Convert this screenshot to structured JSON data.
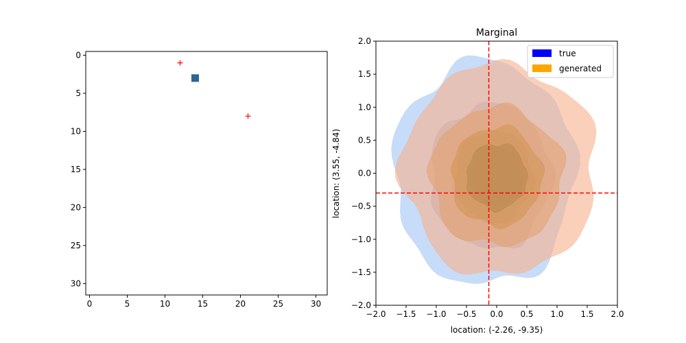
{
  "chart_data": [
    {
      "type": "scatter",
      "title": "",
      "xlabel": "",
      "ylabel": "",
      "xlim": [
        -0.5,
        31.5
      ],
      "ylim": [
        31.5,
        -0.5
      ],
      "y_inverted": true,
      "x_ticks": [
        0,
        5,
        10,
        15,
        20,
        25,
        30
      ],
      "y_ticks": [
        0,
        5,
        10,
        15,
        20,
        25,
        30
      ],
      "grid": false,
      "series": [
        {
          "marker": "square",
          "color": "#2f6591",
          "points": [
            [
              14,
              3
            ]
          ]
        },
        {
          "marker": "plus",
          "color": "#ff0000",
          "points": [
            [
              12,
              1
            ],
            [
              21,
              8
            ]
          ]
        }
      ]
    },
    {
      "type": "area",
      "title": "Marginal",
      "xlabel": "location: (-2.26, -9.35)",
      "ylabel": "location: (3.55, -4.84)",
      "xlim": [
        -2.0,
        2.0
      ],
      "ylim": [
        -2.0,
        2.0
      ],
      "x_ticks": [
        -2.0,
        -1.5,
        -1.0,
        -0.5,
        0.0,
        0.5,
        1.0,
        1.5,
        2.0
      ],
      "y_ticks": [
        -2.0,
        -1.5,
        -1.0,
        -0.5,
        0.0,
        0.5,
        1.0,
        1.5,
        2.0
      ],
      "grid": false,
      "legend_position": "top-right",
      "legend": [
        {
          "label": "true",
          "color": "#0000ff"
        },
        {
          "label": "generated",
          "color": "#ffa500"
        }
      ],
      "reference_lines": {
        "vertical_x": -0.13,
        "horizontal_y": -0.3,
        "color": "#ff0000",
        "style": "dashed"
      },
      "contours": [
        {
          "series": "true",
          "color": "#a9c9f5",
          "opacity": 0.65,
          "center": [
            -0.2,
            0.0
          ],
          "radius": [
            1.5,
            1.7
          ]
        },
        {
          "series": "true",
          "color": "#a1a8c4",
          "opacity": 0.55,
          "center": [
            -0.1,
            -0.05
          ],
          "radius": [
            1.0,
            1.1
          ]
        },
        {
          "series": "true",
          "color": "#8e8fae",
          "opacity": 0.55,
          "center": [
            -0.05,
            -0.05
          ],
          "radius": [
            0.65,
            0.7
          ]
        },
        {
          "series": "true",
          "color": "#7c7a96",
          "opacity": 0.55,
          "center": [
            0.0,
            -0.05
          ],
          "radius": [
            0.42,
            0.45
          ]
        },
        {
          "series": "generated",
          "color": "#f7b08e",
          "opacity": 0.6,
          "center": [
            0.05,
            0.05
          ],
          "radius": [
            1.6,
            1.6
          ]
        },
        {
          "series": "generated",
          "color": "#e3a06a",
          "opacity": 0.55,
          "center": [
            0.0,
            -0.05
          ],
          "radius": [
            1.1,
            1.05
          ]
        },
        {
          "series": "generated",
          "color": "#cf9350",
          "opacity": 0.55,
          "center": [
            0.0,
            -0.05
          ],
          "radius": [
            0.75,
            0.75
          ]
        },
        {
          "series": "generated",
          "color": "#b48449",
          "opacity": 0.5,
          "center": [
            0.0,
            -0.05
          ],
          "radius": [
            0.5,
            0.5
          ]
        }
      ]
    }
  ]
}
